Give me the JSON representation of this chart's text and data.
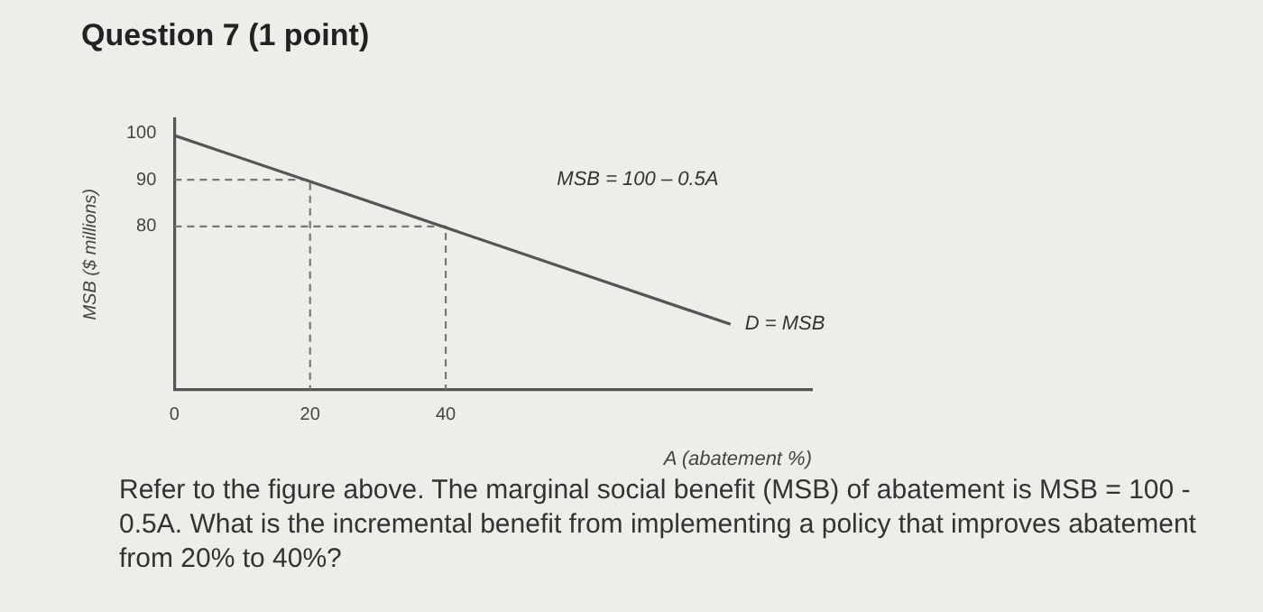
{
  "chart_data": {
    "type": "line",
    "title": "Question 7 (1 point)",
    "xlabel": "A (abatement %)",
    "ylabel": "MSB ($ millions)",
    "xlim": [
      0,
      94
    ],
    "ylim": [
      45,
      103
    ],
    "xticks": [
      0,
      20,
      40
    ],
    "yticks": [
      80,
      90,
      100
    ],
    "grid": false,
    "legend": false,
    "marker": "none",
    "series": [
      {
        "color": "#555555",
        "line_style": "solid",
        "x": [
          0,
          82
        ],
        "values": [
          99.5,
          59
        ]
      },
      {
        "color": "#777777",
        "line_style": "dashed",
        "x": [
          0,
          20,
          20
        ],
        "values": [
          90,
          90,
          45
        ]
      },
      {
        "color": "#777777",
        "line_style": "dashed",
        "x": [
          0,
          40,
          40
        ],
        "values": [
          80,
          80,
          45
        ]
      }
    ],
    "annotations": [
      "MSB = 100 – 0.5A",
      {
        "text": "D = MSB",
        "x": 82,
        "y": 59
      },
      "Refer to the figure above. The marginal social benefit (MSB) of abatement is MSB = 100 - 0.5A. What is the incremental benefit from implementing a policy that improves abatement from 20% to 40%?"
    ]
  }
}
